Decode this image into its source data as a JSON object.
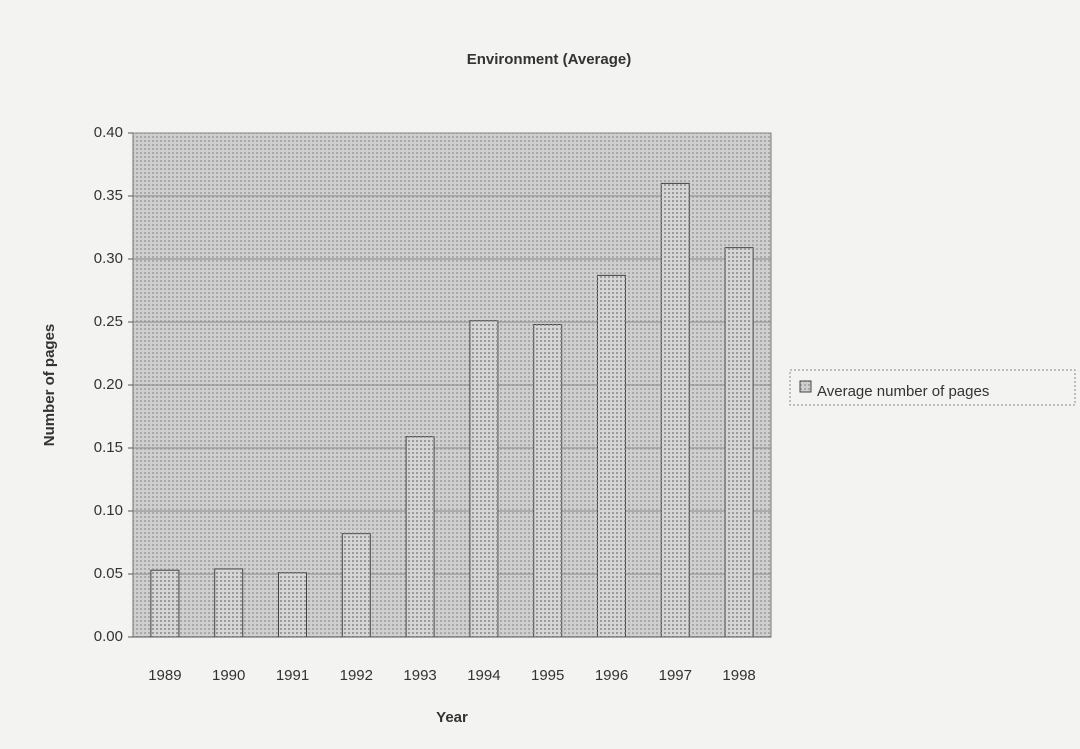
{
  "chart_data": {
    "type": "bar",
    "title": "Environment (Average)",
    "x_label": "Year",
    "y_label": "Number of pages",
    "categories": [
      "1989",
      "1990",
      "1991",
      "1992",
      "1993",
      "1994",
      "1995",
      "1996",
      "1997",
      "1998"
    ],
    "series": [
      {
        "name": "Average number of pages",
        "color": "#d6d6d6",
        "values": [
          0.053,
          0.054,
          0.051,
          0.082,
          0.159,
          0.251,
          0.248,
          0.287,
          0.36,
          0.309
        ]
      }
    ],
    "ylim": [
      0,
      0.4
    ],
    "yticks": [
      {
        "value": 0,
        "label": "0.00"
      },
      {
        "value": 0.05,
        "label": "0.05"
      },
      {
        "value": 0.1,
        "label": "0.10"
      },
      {
        "value": 0.15,
        "label": "0.15"
      },
      {
        "value": 0.2,
        "label": "0.20"
      },
      {
        "value": 0.25,
        "label": "0.25"
      },
      {
        "value": 0.3,
        "label": "0.30"
      },
      {
        "value": 0.35,
        "label": "0.35"
      },
      {
        "value": 0.4,
        "label": "0.40"
      }
    ],
    "grid": true,
    "legend": "right"
  }
}
